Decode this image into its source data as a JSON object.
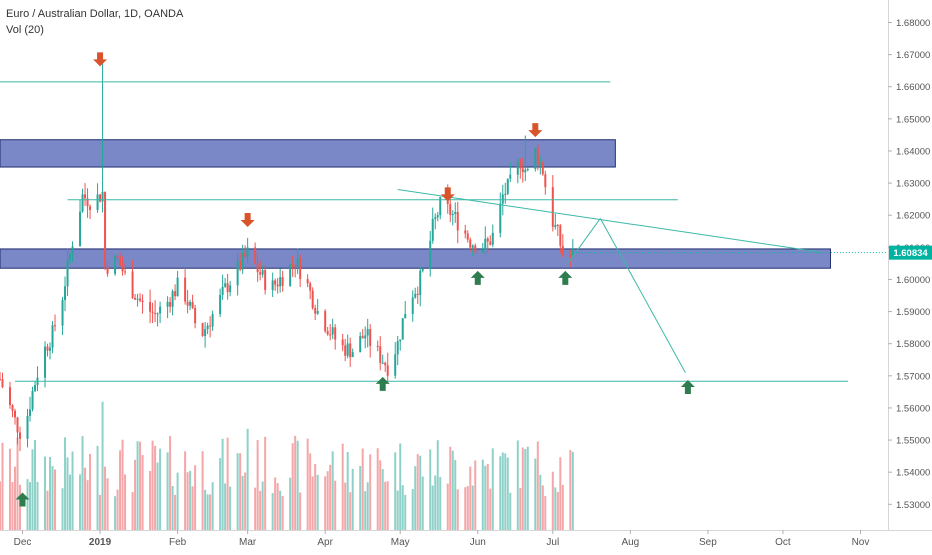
{
  "legend": {
    "symbol_line": "Euro / Australian Dollar, 1D, OANDA",
    "volume_label": "Vol (20)"
  },
  "colors": {
    "up": "#26a69a",
    "down": "#ef5350",
    "vol_up": "#8fd1c8",
    "vol_down": "#f4a6a8",
    "zone_fill": "#7b88c8",
    "zone_stroke": "#1f2d6e",
    "line": "#3cb8a6",
    "arrow_up": "#2e7d4f",
    "arrow_down": "#d9542b",
    "price_tag": "#00b3a1",
    "axis_text": "#555555"
  },
  "chart_data": {
    "type": "candlestick",
    "ylim": [
      1.522,
      1.687
    ],
    "y_ticks": [
      "1.68000",
      "1.67000",
      "1.66000",
      "1.65000",
      "1.64000",
      "1.63000",
      "1.62000",
      "1.61000",
      "1.60000",
      "1.59000",
      "1.58000",
      "1.57000",
      "1.56000",
      "1.55000",
      "1.54000",
      "1.53000"
    ],
    "y_tick_values": [
      1.68,
      1.67,
      1.66,
      1.65,
      1.64,
      1.63,
      1.62,
      1.61,
      1.6,
      1.59,
      1.58,
      1.57,
      1.56,
      1.55,
      1.54,
      1.53
    ],
    "x_range": [
      "2018-11-22",
      "2019-11-12"
    ],
    "x_ticks": [
      {
        "label": "Dec",
        "date": "2018-12-01"
      },
      {
        "label": "2019",
        "date": "2019-01-01"
      },
      {
        "label": "Feb",
        "date": "2019-02-01"
      },
      {
        "label": "Mar",
        "date": "2019-03-01"
      },
      {
        "label": "Apr",
        "date": "2019-04-01"
      },
      {
        "label": "May",
        "date": "2019-05-01"
      },
      {
        "label": "Jun",
        "date": "2019-06-01"
      },
      {
        "label": "Jul",
        "date": "2019-07-01"
      },
      {
        "label": "Aug",
        "date": "2019-08-01"
      },
      {
        "label": "Sep",
        "date": "2019-09-01"
      },
      {
        "label": "Oct",
        "date": "2019-10-01"
      },
      {
        "label": "Nov",
        "date": "2019-11-01"
      }
    ],
    "last_price": 1.60834,
    "last_price_label": "1.60834",
    "price_path": [
      [
        "2018-11-22",
        1.569
      ],
      [
        "2018-11-28",
        1.556
      ],
      [
        "2018-12-01",
        1.551
      ],
      [
        "2018-12-05",
        1.565
      ],
      [
        "2018-12-09",
        1.577
      ],
      [
        "2018-12-13",
        1.583
      ],
      [
        "2018-12-17",
        1.595
      ],
      [
        "2018-12-21",
        1.612
      ],
      [
        "2018-12-25",
        1.626
      ],
      [
        "2018-12-29",
        1.624
      ],
      [
        "2019-01-02",
        1.627
      ],
      [
        "2019-01-03",
        1.604
      ],
      [
        "2019-01-08",
        1.606
      ],
      [
        "2019-01-13",
        1.598
      ],
      [
        "2019-01-18",
        1.592
      ],
      [
        "2019-01-23",
        1.589
      ],
      [
        "2019-01-28",
        1.593
      ],
      [
        "2019-02-02",
        1.599
      ],
      [
        "2019-02-06",
        1.591
      ],
      [
        "2019-02-10",
        1.582
      ],
      [
        "2019-02-15",
        1.589
      ],
      [
        "2019-02-20",
        1.597
      ],
      [
        "2019-02-24",
        1.602
      ],
      [
        "2019-03-01",
        1.608
      ],
      [
        "2019-03-05",
        1.603
      ],
      [
        "2019-03-10",
        1.597
      ],
      [
        "2019-03-15",
        1.601
      ],
      [
        "2019-03-20",
        1.606
      ],
      [
        "2019-03-24",
        1.6
      ],
      [
        "2019-03-29",
        1.59
      ],
      [
        "2019-04-03",
        1.584
      ],
      [
        "2019-04-07",
        1.579
      ],
      [
        "2019-04-12",
        1.578
      ],
      [
        "2019-04-17",
        1.583
      ],
      [
        "2019-04-21",
        1.578
      ],
      [
        "2019-04-26",
        1.573
      ],
      [
        "2019-04-30",
        1.58
      ],
      [
        "2019-05-04",
        1.594
      ],
      [
        "2019-05-08",
        1.598
      ],
      [
        "2019-05-11",
        1.604
      ],
      [
        "2019-05-14",
        1.616
      ],
      [
        "2019-05-17",
        1.623
      ],
      [
        "2019-05-21",
        1.621
      ],
      [
        "2019-05-25",
        1.617
      ],
      [
        "2019-05-29",
        1.612
      ],
      [
        "2019-06-02",
        1.61
      ],
      [
        "2019-06-05",
        1.611
      ],
      [
        "2019-06-08",
        1.615
      ],
      [
        "2019-06-11",
        1.626
      ],
      [
        "2019-06-15",
        1.631
      ],
      [
        "2019-06-18",
        1.637
      ],
      [
        "2019-06-21",
        1.633
      ],
      [
        "2019-06-24",
        1.64
      ],
      [
        "2019-06-27",
        1.634
      ],
      [
        "2019-06-30",
        1.62
      ],
      [
        "2019-07-03",
        1.614
      ],
      [
        "2019-07-06",
        1.605
      ],
      [
        "2019-07-09",
        1.608
      ]
    ],
    "candle_seed": 7,
    "volume_ylim": [
      0,
      1
    ],
    "zones": [
      {
        "from": "2018-11-22",
        "to": "2019-07-26",
        "y_top": 1.6435,
        "y_bottom": 1.635
      },
      {
        "from": "2018-11-22",
        "to": "2019-10-20",
        "y_top": 1.6095,
        "y_bottom": 1.6035
      }
    ],
    "lines": [
      {
        "from": [
          "2018-11-22",
          1.6615
        ],
        "to": [
          "2019-07-24",
          1.6615
        ]
      },
      {
        "from": [
          "2018-12-19",
          1.6248
        ],
        "to": [
          "2019-08-20",
          1.6248
        ]
      },
      {
        "from": [
          "2018-11-28",
          1.5683
        ],
        "to": [
          "2019-10-27",
          1.5683
        ]
      },
      {
        "from": [
          "2019-04-30",
          1.628
        ],
        "to": [
          "2019-10-16",
          1.6085
        ]
      },
      {
        "from": [
          "2019-07-07",
          1.605
        ],
        "to": [
          "2019-07-20",
          1.619
        ]
      },
      {
        "from": [
          "2019-07-20",
          1.619
        ],
        "to": [
          "2019-08-23",
          1.571
        ]
      }
    ],
    "arrows_down": [
      [
        "2019-01-01",
        1.6685
      ],
      [
        "2019-03-01",
        1.6185
      ],
      [
        "2019-05-20",
        1.6265
      ],
      [
        "2019-06-24",
        1.6465
      ]
    ],
    "arrows_up": [
      [
        "2018-12-01",
        1.5315
      ],
      [
        "2019-04-24",
        1.5675
      ],
      [
        "2019-06-01",
        1.6005
      ],
      [
        "2019-07-06",
        1.6005
      ],
      [
        "2019-08-24",
        1.5665
      ]
    ]
  }
}
